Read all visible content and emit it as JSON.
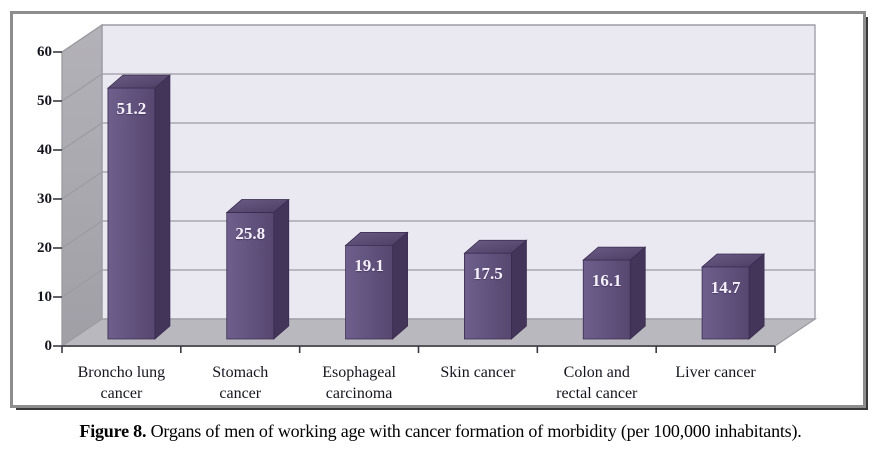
{
  "figure": {
    "caption_label": "Figure 8.",
    "caption_text": " Organs of men of working age with cancer formation of morbidity (per 100,000 inhabitants)."
  },
  "chart_data": {
    "type": "bar",
    "style": "3d-column",
    "title": "",
    "xlabel": "",
    "ylabel": "",
    "categories": [
      "Broncho lung cancer",
      "Stomach cancer",
      "Esophageal carcinoma",
      "Skin cancer",
      "Colon and rectal cancer",
      "Liver cancer"
    ],
    "categories_lines": [
      [
        "Broncho lung",
        "cancer"
      ],
      [
        "Stomach",
        "cancer"
      ],
      [
        "Esophageal",
        "carcinoma"
      ],
      [
        "Skin cancer"
      ],
      [
        "Colon and",
        "rectal cancer"
      ],
      [
        "Liver cancer"
      ]
    ],
    "values": [
      51.2,
      25.8,
      19.1,
      17.5,
      16.1,
      14.7
    ],
    "ylim": [
      0,
      60
    ],
    "ytick_interval": 10,
    "yticks": [
      0,
      10,
      20,
      30,
      40,
      50,
      60
    ],
    "grid": true,
    "legend": false,
    "colors": {
      "bar_front_light": "#6e5f8c",
      "bar_front_dark": "#564770",
      "bar_side": "#433459",
      "bar_top_light": "#6b5c86",
      "bar_top_dark": "#4b3d62",
      "bar_edge": "#3a2d50",
      "back_wall": "#eae9f2",
      "side_wall_light": "#b3b2b8",
      "side_wall_dark": "#a09fa6",
      "floor": "#b9b8be",
      "gridline": "#9c9ba2",
      "axis_line": "#55555a",
      "tick": "#3a3a42",
      "label_text": "#15151f",
      "value_text": "#f4f1fa"
    }
  }
}
